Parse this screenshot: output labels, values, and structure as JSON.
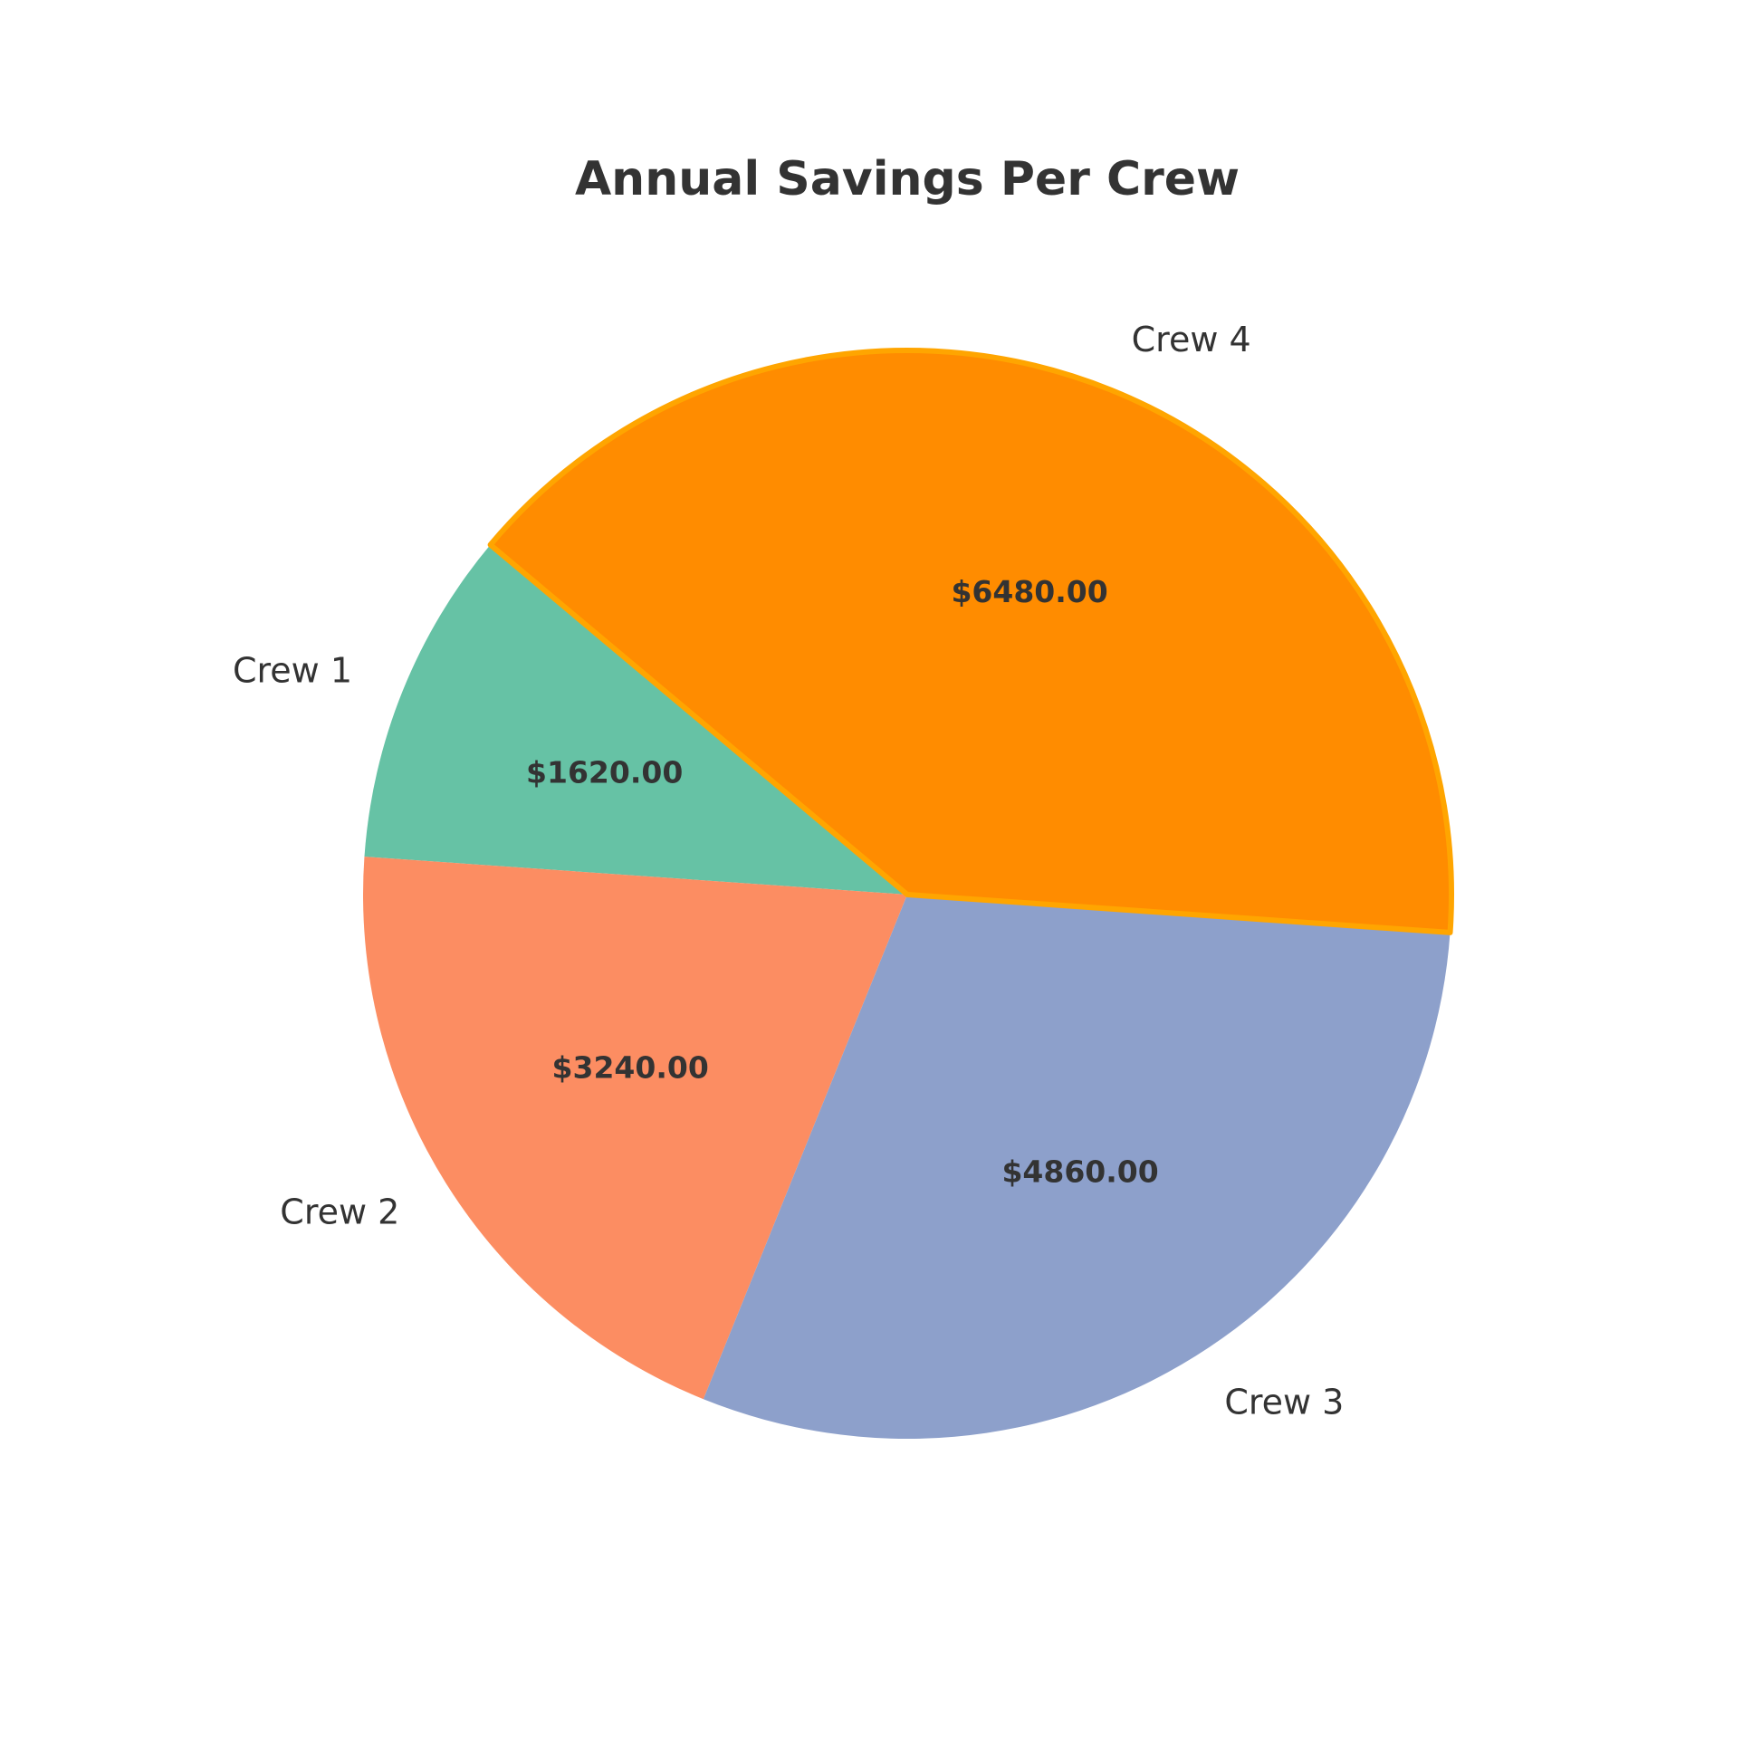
{
  "chart_data": {
    "type": "pie",
    "title": "Annual Savings Per Crew",
    "categories": [
      "Crew 1",
      "Crew 2",
      "Crew 3",
      "Crew 4"
    ],
    "values": [
      1620.0,
      3240.0,
      4860.0,
      6480.0
    ],
    "value_labels": [
      "$1620.00",
      "$3240.00",
      "$4860.00",
      "$6480.00"
    ],
    "colors": [
      "#66c2a5",
      "#fc8d62",
      "#8da0cb",
      "#ff8c00"
    ],
    "highlighted_slice": "Crew 4",
    "highlight_edge_color": "#ffa500"
  }
}
